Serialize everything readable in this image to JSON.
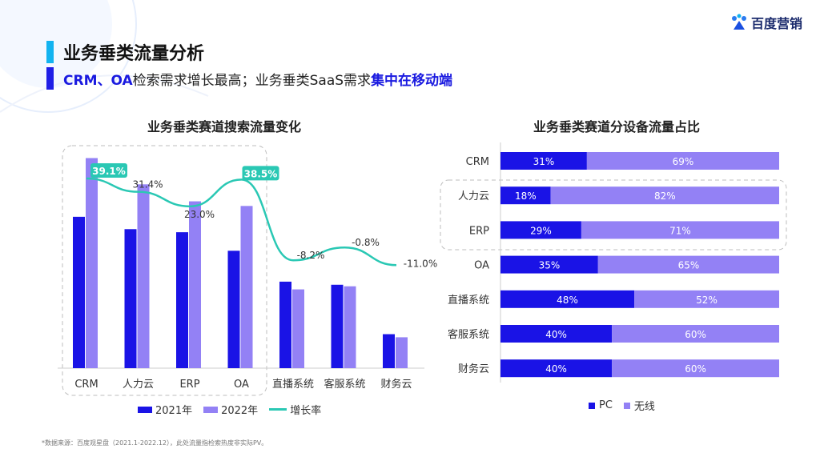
{
  "brand": {
    "logo_text": "百度营销"
  },
  "header": {
    "title": "业务垂类流量分析",
    "subtitle_part1": "CRM、OA",
    "subtitle_part2": "检索需求增长最高；业务垂类SaaS需求",
    "subtitle_highlight": "集中在移动端"
  },
  "chart_data": [
    {
      "type": "bar",
      "title": "业务垂类赛道搜索流量变化",
      "categories": [
        "CRM",
        "人力云",
        "ERP",
        "OA",
        "直播系统",
        "客服系统",
        "财务云"
      ],
      "series": [
        {
          "name": "2021年",
          "values": [
            98,
            90,
            88,
            76,
            56,
            54,
            22
          ]
        },
        {
          "name": "2022年",
          "values": [
            136,
            119,
            108,
            105,
            51,
            53,
            20
          ]
        },
        {
          "name": "增长率",
          "kind": "line",
          "values": [
            39.1,
            31.4,
            23.0,
            38.5,
            -8.2,
            -0.8,
            -11.0
          ],
          "labels": [
            "39.1%",
            "31.4%",
            "23.0%",
            "38.5%",
            "-8.2%",
            "-0.8%",
            "-11.0%"
          ]
        }
      ],
      "colors": {
        "2021": "#1a13e6",
        "2022": "#9381f5",
        "line": "#2ac8b4"
      }
    },
    {
      "type": "bar",
      "orientation": "horizontal",
      "stacked": "percent",
      "title": "业务垂类赛道分设备流量占比",
      "categories": [
        "CRM",
        "人力云",
        "ERP",
        "OA",
        "直播系统",
        "客服系统",
        "财务云"
      ],
      "series": [
        {
          "name": "PC",
          "values": [
            31,
            18,
            29,
            35,
            48,
            40,
            40
          ]
        },
        {
          "name": "无线",
          "values": [
            69,
            82,
            71,
            65,
            52,
            60,
            60
          ]
        }
      ],
      "colors": {
        "PC": "#1a13e6",
        "mobile": "#9381f5"
      }
    }
  ],
  "left_legend": {
    "a": "2021年",
    "b": "2022年",
    "c": "增长率"
  },
  "right_legend": {
    "a": "PC",
    "b": "无线"
  },
  "footnote": "*数据来源：百度观星盘（2021.1-2022.12），此处流量指检索热度非实际PV。"
}
